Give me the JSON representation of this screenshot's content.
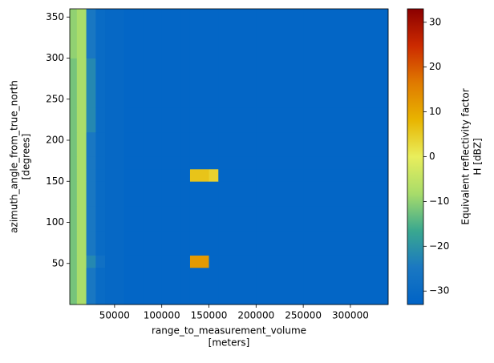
{
  "chart_data": {
    "type": "heatmap",
    "xlabel": [
      "range_to_measurement_volume",
      "[meters]"
    ],
    "ylabel": [
      "azimuth_angle_from_true_north",
      "[degrees]"
    ],
    "colorbar_label": [
      "Equivalent reflectivity factor",
      "H [dBZ]"
    ],
    "xlim": [
      2500,
      340000
    ],
    "ylim": [
      0,
      360
    ],
    "xticks": [
      50000,
      100000,
      150000,
      200000,
      250000,
      300000
    ],
    "yticks": [
      50,
      100,
      150,
      200,
      250,
      300,
      350
    ],
    "clim": [
      -33,
      33
    ],
    "cticks": [
      {
        "value": -30,
        "label": "−30"
      },
      {
        "value": -20,
        "label": "−20"
      },
      {
        "value": -10,
        "label": "−10"
      },
      0,
      10,
      20,
      30
    ],
    "colormap": [
      "#0063c6",
      "#1a78c2",
      "#3aa88f",
      "#a8dc6a",
      "#e9ee5c",
      "#e8b400",
      "#e07a00",
      "#cc2a00",
      "#8b0000"
    ],
    "x_edges": [
      2500,
      10000,
      20000,
      30000,
      40000,
      60000,
      80000,
      100000,
      120000,
      130000,
      150000,
      160000,
      200000,
      250000,
      300000,
      340000
    ],
    "y_edges": [
      0,
      30,
      45,
      60,
      90,
      120,
      150,
      165,
      180,
      210,
      240,
      270,
      300,
      330,
      360
    ],
    "z": [
      [
        -12,
        -8,
        -25,
        -30,
        -31,
        -32,
        -32,
        -32,
        -32,
        -32,
        -32,
        -32,
        -32,
        -32,
        -32
      ],
      [
        -12,
        -8,
        -25,
        -30,
        -31,
        -32,
        -32,
        -32,
        -32,
        -32,
        -32,
        -32,
        -32,
        -32,
        -32
      ],
      [
        -12,
        -8,
        -22,
        -28,
        -31,
        -32,
        -32,
        -32,
        -32,
        12,
        -32,
        -32,
        -32,
        -32,
        -32
      ],
      [
        -12,
        -8,
        -25,
        -30,
        -31,
        -32,
        -32,
        -32,
        -32,
        -32,
        -32,
        -32,
        -32,
        -32,
        -32
      ],
      [
        -12,
        -8,
        -25,
        -30,
        -31,
        -32,
        -32,
        -32,
        -32,
        -32,
        -32,
        -32,
        -32,
        -32,
        -32
      ],
      [
        -12,
        -8,
        -25,
        -30,
        -31,
        -32,
        -32,
        -32,
        -32,
        -32,
        -32,
        -32,
        -32,
        -32,
        -32
      ],
      [
        -12,
        -8,
        -25,
        -30,
        -31,
        -32,
        -32,
        -32,
        -32,
        6,
        4,
        -32,
        -32,
        -32,
        -32
      ],
      [
        -12,
        -8,
        -25,
        -30,
        -31,
        -32,
        -32,
        -32,
        -32,
        -32,
        -32,
        -32,
        -32,
        -32,
        -32
      ],
      [
        -12,
        -8,
        -25,
        -30,
        -31,
        -32,
        -32,
        -32,
        -32,
        -32,
        -32,
        -32,
        -32,
        -32,
        -32
      ],
      [
        -12,
        -8,
        -22,
        -30,
        -31,
        -32,
        -32,
        -32,
        -32,
        -32,
        -32,
        -32,
        -32,
        -32,
        -32
      ],
      [
        -12,
        -8,
        -22,
        -30,
        -31,
        -32,
        -32,
        -32,
        -32,
        -32,
        -32,
        -32,
        -32,
        -32,
        -32
      ],
      [
        -12,
        -8,
        -22,
        -30,
        -31,
        -32,
        -32,
        -32,
        -32,
        -32,
        -32,
        -32,
        -32,
        -32,
        -32
      ],
      [
        -10,
        -8,
        -25,
        -30,
        -31,
        -32,
        -32,
        -32,
        -32,
        -32,
        -32,
        -32,
        -32,
        -32,
        -32
      ],
      [
        -10,
        -8,
        -25,
        -30,
        -31,
        -32,
        -32,
        -32,
        -32,
        -32,
        -32,
        -32,
        -32,
        -32,
        -32
      ]
    ]
  }
}
